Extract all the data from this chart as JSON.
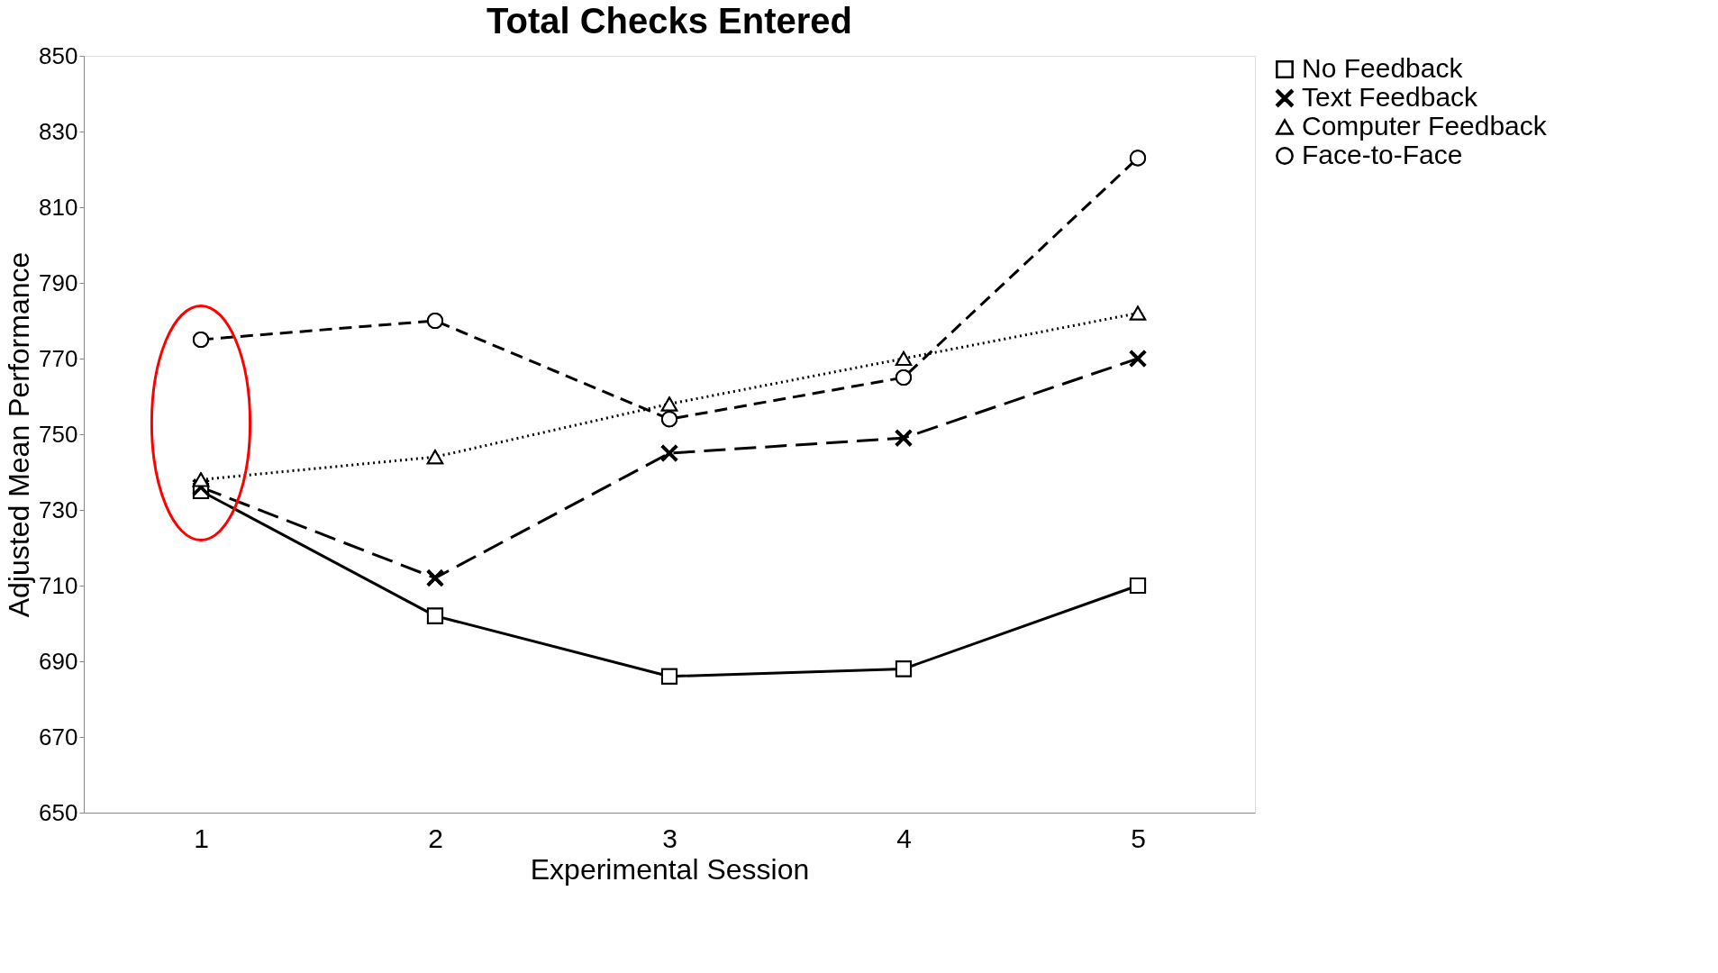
{
  "chart_data": {
    "type": "line",
    "title": "Total Checks Entered",
    "xlabel": "Experimental Session",
    "ylabel": "Adjusted Mean Performance",
    "categories": [
      "1",
      "2",
      "3",
      "4",
      "5"
    ],
    "series": [
      {
        "name": "No Feedback",
        "color": "#000000",
        "marker": "square",
        "line_style": "solid",
        "values": [
          735,
          702,
          686,
          688,
          710
        ]
      },
      {
        "name": "Text Feedback",
        "color": "#000000",
        "marker": "cross",
        "line_style": "dashed",
        "values": [
          736,
          712,
          745,
          749,
          770
        ]
      },
      {
        "name": "Computer Feedback",
        "color": "#000000",
        "marker": "triangle",
        "line_style": "dotted",
        "values": [
          738,
          744,
          758,
          770,
          782
        ]
      },
      {
        "name": "Face-to-Face",
        "color": "#000000",
        "marker": "circle",
        "line_style": "dashed",
        "values": [
          775,
          780,
          754,
          765,
          823
        ]
      }
    ],
    "ylim": [
      650,
      850
    ],
    "yticks": [
      650,
      670,
      690,
      710,
      730,
      750,
      770,
      790,
      810,
      830,
      850
    ],
    "grid": false,
    "legend": "right"
  }
}
